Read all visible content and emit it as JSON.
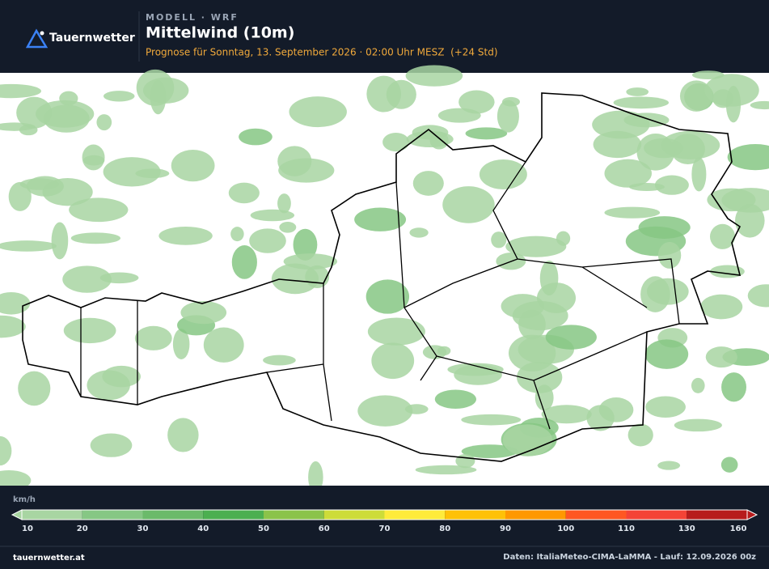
{
  "header": {
    "brand": "Tauernwetter",
    "model": "MODELL · WRF",
    "title": "Mittelwind (10m)",
    "subtitle": "Prognose für Sonntag, 13. September 2026 · 02:00 Uhr MESZ  (+24 Std)"
  },
  "legend": {
    "unit": "km/h",
    "labels": [
      10,
      20,
      30,
      40,
      50,
      60,
      70,
      80,
      90,
      100,
      110,
      130,
      160
    ],
    "colors": [
      "#a8d5a2",
      "#86c784",
      "#6bba6a",
      "#4caf50",
      "#8bc34a",
      "#cddc39",
      "#ffeb3b",
      "#ffc107",
      "#ff9800",
      "#ff5722",
      "#f44336",
      "#b71c1c"
    ]
  },
  "footer": {
    "site": "tauernwetter.at",
    "source": "Daten: ItaliaMeteo-CIMA-LaMMA - Lauf: 12.09.2026 00z"
  }
}
